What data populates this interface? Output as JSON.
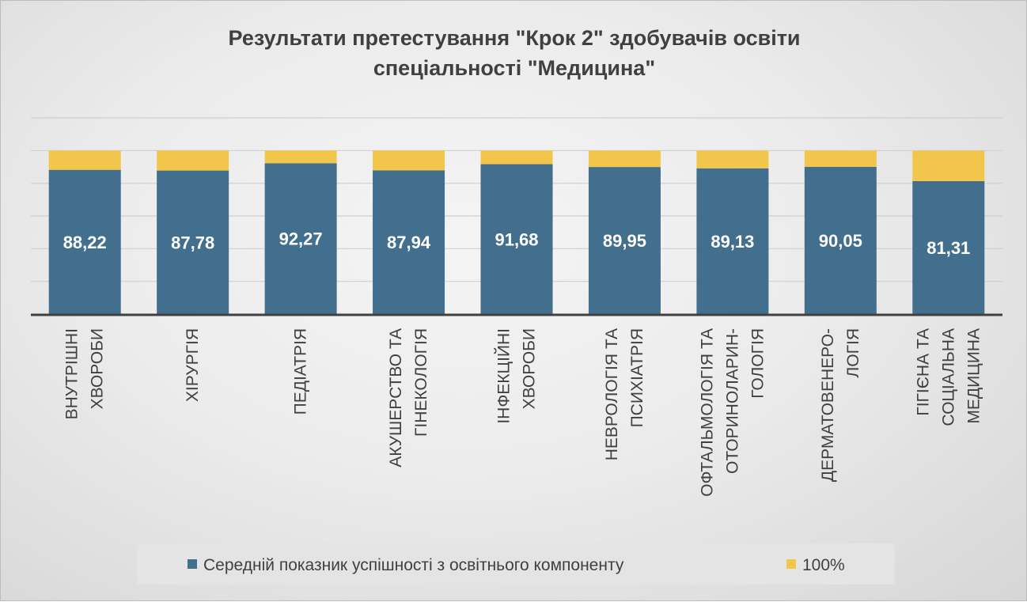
{
  "chart_data": {
    "type": "bar",
    "stacked": true,
    "title": [
      "Результати претестування \"Крок 2\" здобувачів освіти",
      "спеціальності \"Медицина\""
    ],
    "categories": [
      [
        "ВНУТРІШНІ",
        "ХВОРОБИ"
      ],
      [
        "ХІРУРГІЯ"
      ],
      [
        "ПЕДІАТРІЯ"
      ],
      [
        "АКУШЕРСТВО ТА",
        "ГІНЕКОЛОГІЯ"
      ],
      [
        "ІНФЕКЦІЙНІ",
        "ХВОРОБИ"
      ],
      [
        "НЕВРОЛОГІЯ ТА",
        "ПСИХІАТРІЯ"
      ],
      [
        "ОФТАЛЬМОЛОГІЯ ТА",
        "ОТОРИНОЛАРИН-",
        "ГОЛОГІЯ"
      ],
      [
        "ДЕРМАТОВЕНЕРО-",
        "ЛОГІЯ"
      ],
      [
        "ГІГІЄНА ТА",
        "СОЦІАЛЬНА",
        "МЕДИЦИНА"
      ]
    ],
    "series": [
      {
        "name": "Середній показник успішності з освітнього компоненту",
        "color": "#436f8e",
        "values": [
          88.22,
          87.78,
          92.27,
          87.94,
          91.68,
          89.95,
          89.13,
          90.05,
          81.31
        ],
        "labels": [
          "88,22",
          "87,78",
          "92,27",
          "87,94",
          "91,68",
          "89,95",
          "89,13",
          "90,05",
          "81,31"
        ]
      },
      {
        "name": "100%",
        "color": "#f2c54b",
        "values": [
          11.78,
          12.22,
          7.73,
          12.06,
          8.32,
          10.05,
          10.87,
          9.95,
          18.69
        ]
      }
    ],
    "ylim": [
      0,
      120
    ],
    "ytick_step": 20,
    "y_tick_labels_visible": false,
    "grid": true,
    "legend": "bottom"
  }
}
